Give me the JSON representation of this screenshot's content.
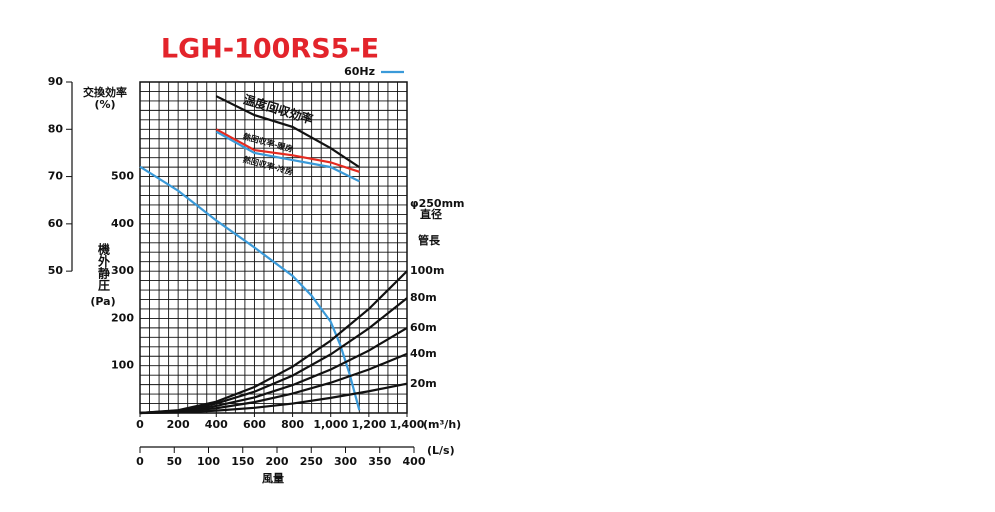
{
  "chart_data": {
    "type": "line",
    "title": "LGH-100RS5-E",
    "y_label": "機外静圧",
    "y_unit": "(Pa)",
    "y2_label": "交換効率",
    "y2_unit": "(%)",
    "x_unit": "(m³/h)",
    "x2_unit": "(L/s)",
    "x_label": "風量",
    "annotations": [
      "φ250mm",
      "直径",
      "管長"
    ],
    "xlim": [
      0,
      1400
    ],
    "ylim": [
      0,
      700
    ],
    "y2lim": [
      20,
      90
    ],
    "x2lim": [
      0,
      400
    ],
    "xticks": [
      0,
      200,
      400,
      600,
      800,
      {
        "value": 1000,
        "label": "1,000"
      },
      {
        "value": 1200,
        "label": "1,200"
      },
      {
        "value": 1400,
        "label": "1,400"
      }
    ],
    "x2ticks": [
      0,
      50,
      100,
      150,
      200,
      250,
      300,
      350,
      400
    ],
    "yticks": [
      100,
      200,
      300,
      400,
      500
    ],
    "y2ticks": [
      50,
      60,
      70,
      80,
      90
    ],
    "xgrid": [
      0,
      50,
      100,
      150,
      200,
      250,
      300,
      350,
      400,
      450,
      500,
      550,
      600,
      650,
      700,
      750,
      800,
      850,
      900,
      950,
      1000,
      1050,
      1100,
      1150,
      1200,
      1250,
      1300,
      1350,
      1400
    ],
    "ygrid": [
      0,
      20,
      40,
      60,
      80,
      100,
      120,
      140,
      160,
      180,
      200,
      220,
      240,
      260,
      280,
      300,
      320,
      340,
      360,
      380,
      400,
      420,
      440,
      460,
      480,
      500,
      520,
      540,
      560,
      580,
      600,
      620,
      640,
      660,
      680,
      700
    ],
    "series": [
      {
        "name": "温度回収効率",
        "color": "#111111",
        "axis": "y2",
        "x": [
          400,
          600,
          800,
          1000,
          1150
        ],
        "values": [
          87,
          83,
          80.5,
          76,
          72
        ]
      },
      {
        "name": "熱回収率-暖房",
        "color": "#e52a20",
        "axis": "y2",
        "x": [
          400,
          600,
          800,
          1000,
          1150
        ],
        "values": [
          80,
          75.6,
          74.5,
          73,
          71
        ]
      },
      {
        "name": "熱回収率-冷房",
        "color": "#3a9ad9",
        "axis": "y2",
        "x": [
          400,
          600,
          800,
          1000,
          1150
        ],
        "values": [
          79.5,
          75,
          73.5,
          72,
          69
        ]
      },
      {
        "name": "60Hz",
        "color": "#3a9ad9",
        "x": [
          0,
          200,
          400,
          600,
          800,
          900,
          1000,
          1050,
          1100,
          1150
        ],
        "values": [
          521,
          470,
          407,
          350,
          290,
          248,
          193,
          144,
          81,
          6
        ]
      },
      {
        "name": "100m",
        "color": "#111111",
        "x": [
          0,
          200,
          400,
          600,
          800,
          1000,
          1200,
          1400
        ],
        "values": [
          0,
          6,
          24,
          55,
          98,
          153,
          220,
          300
        ]
      },
      {
        "name": "80m",
        "color": "#111111",
        "x": [
          0,
          200,
          400,
          600,
          800,
          1000,
          1200,
          1400
        ],
        "values": [
          0,
          5,
          20,
          45,
          79,
          124,
          179,
          243
        ]
      },
      {
        "name": "60m",
        "color": "#111111",
        "x": [
          0,
          200,
          400,
          600,
          800,
          1000,
          1200,
          1400
        ],
        "values": [
          0,
          4,
          15,
          33,
          59,
          92,
          132,
          180
        ]
      },
      {
        "name": "40m",
        "color": "#111111",
        "x": [
          0,
          200,
          400,
          600,
          800,
          1000,
          1200,
          1400
        ],
        "values": [
          0,
          3,
          10,
          23,
          41,
          64,
          92,
          125
        ]
      },
      {
        "name": "20m",
        "color": "#111111",
        "x": [
          0,
          200,
          400,
          600,
          800,
          1000,
          1200,
          1400
        ],
        "values": [
          0,
          1,
          5,
          11,
          20,
          32,
          46,
          62
        ]
      }
    ]
  }
}
